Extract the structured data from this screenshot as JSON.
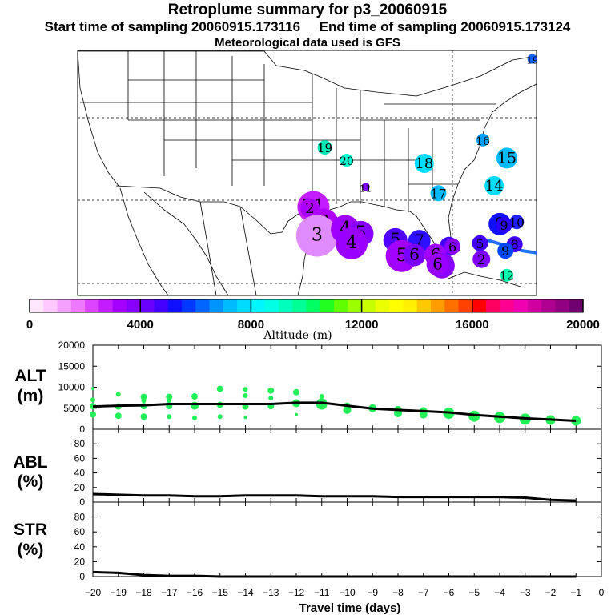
{
  "header": {
    "title": "Retroplume summary for p3_20060915",
    "start_label": "Start time of sampling 20060915.173116",
    "end_label": "End time of sampling 20060915.173124",
    "met_label": "Meteorological data used is GFS"
  },
  "colorbar": {
    "min": 0,
    "max": 20000,
    "tick_labels": [
      "0",
      "4000",
      "8000",
      "12000",
      "16000",
      "20000"
    ],
    "tick_values": [
      0,
      4000,
      8000,
      12000,
      16000,
      20000
    ],
    "axis_label": "Altitude (m)",
    "colors": [
      "#ffe6ff",
      "#ffc8ff",
      "#f5a0ff",
      "#ee78ff",
      "#dd44ff",
      "#c21cff",
      "#a400ff",
      "#8800ff",
      "#6a00ff",
      "#4400ff",
      "#1010ff",
      "#0038ff",
      "#0066ff",
      "#0094ff",
      "#00bcff",
      "#00dcff",
      "#00f6ff",
      "#00ffe4",
      "#00ffbc",
      "#00ff94",
      "#00ff60",
      "#20ff20",
      "#60ff00",
      "#9cff00",
      "#c8ff00",
      "#ecff00",
      "#ffff00",
      "#fff000",
      "#ffc800",
      "#ff9c00",
      "#ff7000",
      "#ff4000",
      "#ff0000",
      "#ff0060",
      "#ff0090",
      "#f000b0",
      "#d000a0",
      "#b00090",
      "#900080",
      "#700070"
    ]
  },
  "map": {
    "labels": [
      {
        "text": "19",
        "lon": -60.6,
        "lat": 52.2,
        "color": "#1060ff",
        "size": 6
      },
      {
        "text": "16",
        "lon": -67.6,
        "lat": 44.6,
        "color": "#00a0ff",
        "size": 8
      },
      {
        "text": "19",
        "lon": -90.0,
        "lat": 43.9,
        "color": "#00e8b8",
        "size": 9
      },
      {
        "text": "15",
        "lon": -64.2,
        "lat": 42.9,
        "color": "#00bcff",
        "size": 13
      },
      {
        "text": "20",
        "lon": -86.9,
        "lat": 42.7,
        "color": "#00ffd0",
        "size": 8
      },
      {
        "text": "18",
        "lon": -75.9,
        "lat": 42.4,
        "color": "#00dcff",
        "size": 12
      },
      {
        "text": "14",
        "lon": -66.0,
        "lat": 40.3,
        "color": "#00dcff",
        "size": 12
      },
      {
        "text": "11",
        "lon": -84.2,
        "lat": 40.2,
        "color": "#7a00ff",
        "size": 5
      },
      {
        "text": "17",
        "lon": -73.9,
        "lat": 39.6,
        "color": "#00bcff",
        "size": 10
      },
      {
        "text": "21",
        "lon": -91.6,
        "lat": 38.3,
        "color": "#c21cff",
        "size": 20
      },
      {
        "text": "2",
        "lon": -92.1,
        "lat": 38.2,
        "color": "#aa00ff",
        "size": 12
      },
      {
        "text": "8",
        "lon": -65.2,
        "lat": 36.7,
        "color": "#1010ff",
        "size": 14
      },
      {
        "text": "10",
        "lon": -62.8,
        "lat": 36.9,
        "color": "#2020ff",
        "size": 9
      },
      {
        "text": "9",
        "lon": -64.6,
        "lat": 36.6,
        "color": "#2a00ff",
        "size": 10
      },
      {
        "text": "3",
        "lon": -90.1,
        "lat": 36.8,
        "color": "#b200ff",
        "size": 18
      },
      {
        "text": "3",
        "lon": -91.1,
        "lat": 35.6,
        "color": "#e08cff",
        "size": 26
      },
      {
        "text": "4",
        "lon": -87.1,
        "lat": 36.2,
        "color": "#a000ff",
        "size": 18
      },
      {
        "text": "5",
        "lon": -84.9,
        "lat": 35.8,
        "color": "#8800ff",
        "size": 16
      },
      {
        "text": "5",
        "lon": -80.0,
        "lat": 35.2,
        "color": "#5000ff",
        "size": 15
      },
      {
        "text": "7",
        "lon": -76.6,
        "lat": 35.1,
        "color": "#2c10ff",
        "size": 14
      },
      {
        "text": "4",
        "lon": -86.2,
        "lat": 34.9,
        "color": "#9a00ff",
        "size": 20
      },
      {
        "text": "6",
        "lon": -72.4,
        "lat": 34.6,
        "color": "#4400ff",
        "size": 12
      },
      {
        "text": "5",
        "lon": -68.0,
        "lat": 34.9,
        "color": "#4400ff",
        "size": 10
      },
      {
        "text": "8",
        "lon": -63.1,
        "lat": 34.8,
        "color": "#4400ff",
        "size": 10
      },
      {
        "text": "6",
        "lon": -71.9,
        "lat": 34.6,
        "color": "#8a00ff",
        "size": 10
      },
      {
        "text": "9",
        "lon": -64.4,
        "lat": 34.2,
        "color": "#0048ff",
        "size": 10
      },
      {
        "text": "5",
        "lon": -79.1,
        "lat": 33.7,
        "color": "#a200ff",
        "size": 20
      },
      {
        "text": "6",
        "lon": -77.3,
        "lat": 33.8,
        "color": "#7a00ff",
        "size": 14
      },
      {
        "text": "6",
        "lon": -74.3,
        "lat": 33.8,
        "color": "#a000ff",
        "size": 14
      },
      {
        "text": "2",
        "lon": -67.8,
        "lat": 33.4,
        "color": "#8000ff",
        "size": 11
      },
      {
        "text": "7",
        "lon": -73.4,
        "lat": 32.8,
        "color": "#8a00ff",
        "size": 16
      },
      {
        "text": "6",
        "lon": -74.0,
        "lat": 32.9,
        "color": "#9a00ff",
        "size": 14
      },
      {
        "text": "12",
        "lon": -64.2,
        "lat": 31.9,
        "color": "#00ffb0",
        "size": 8
      }
    ],
    "path_color": "#1e70ff"
  },
  "panels": {
    "alt": {
      "label_line1": "ALT",
      "label_line2": "(m)",
      "ylim": [
        0,
        20000
      ],
      "y_ticks": [
        "20000",
        "15000",
        "10000",
        "5000",
        "0"
      ]
    },
    "abl": {
      "label_line1": "ABL",
      "label_line2": "(%)",
      "ylim": [
        0,
        100
      ],
      "y_ticks": [
        "80",
        "60",
        "40",
        "20",
        "0"
      ]
    },
    "str": {
      "label_line1": "STR",
      "label_line2": "(%)",
      "ylim": [
        0,
        100
      ],
      "y_ticks": [
        "80",
        "60",
        "40",
        "20",
        "0"
      ]
    },
    "x_tick_labels": [
      "−20",
      "−19",
      "−18",
      "−17",
      "−16",
      "−15",
      "−14",
      "−13",
      "−12",
      "−11",
      "−10",
      "−9",
      "−8",
      "−7",
      "−6",
      "−5",
      "−4",
      "−3",
      "−2",
      "−1",
      "0"
    ],
    "xlabel": "Travel time (days)"
  },
  "chart_data": {
    "type": "line",
    "title": "Retroplume summary for p3_20060915",
    "xlabel": "Travel time (days)",
    "xlim": [
      -20,
      0
    ],
    "x": [
      -20,
      -19,
      -18,
      -17,
      -16,
      -15,
      -14,
      -13,
      -12,
      -11,
      -10,
      -9,
      -8,
      -7,
      -6,
      -5,
      -4,
      -3,
      -2,
      -1
    ],
    "series": [
      {
        "name": "ALT mean (m)",
        "values": [
          5400,
          5600,
          5700,
          6000,
          6000,
          6000,
          6000,
          6000,
          6300,
          6300,
          5600,
          4900,
          4600,
          4300,
          4000,
          3400,
          3000,
          2600,
          2300,
          2000
        ]
      },
      {
        "name": "ABL (%)",
        "values": [
          11,
          10,
          9,
          9,
          8,
          8,
          9,
          9,
          9,
          8,
          8,
          8,
          7,
          7,
          7,
          7,
          7,
          6,
          3,
          2
        ]
      },
      {
        "name": "STR (%)",
        "values": [
          6,
          5,
          2,
          1,
          1,
          0,
          0,
          0,
          0,
          0,
          0,
          0,
          0,
          0,
          0,
          0,
          0,
          0,
          0,
          0
        ]
      }
    ],
    "alt_points": [
      {
        "x": -20,
        "y": 9700,
        "s": 2
      },
      {
        "x": -20,
        "y": 7000,
        "s": 3
      },
      {
        "x": -20,
        "y": 5500,
        "s": 4
      },
      {
        "x": -20,
        "y": 3500,
        "s": 4
      },
      {
        "x": -19,
        "y": 8300,
        "s": 3
      },
      {
        "x": -19,
        "y": 5400,
        "s": 4
      },
      {
        "x": -19,
        "y": 3200,
        "s": 4
      },
      {
        "x": -18,
        "y": 7700,
        "s": 4
      },
      {
        "x": -18,
        "y": 6800,
        "s": 3
      },
      {
        "x": -18,
        "y": 5500,
        "s": 4
      },
      {
        "x": -18,
        "y": 3000,
        "s": 4
      },
      {
        "x": -17,
        "y": 7700,
        "s": 4
      },
      {
        "x": -17,
        "y": 6800,
        "s": 3
      },
      {
        "x": -17,
        "y": 5500,
        "s": 4
      },
      {
        "x": -17,
        "y": 3000,
        "s": 3
      },
      {
        "x": -16,
        "y": 7800,
        "s": 4
      },
      {
        "x": -16,
        "y": 5600,
        "s": 5
      },
      {
        "x": -16,
        "y": 2700,
        "s": 3
      },
      {
        "x": -15,
        "y": 9600,
        "s": 4
      },
      {
        "x": -15,
        "y": 5800,
        "s": 4
      },
      {
        "x": -15,
        "y": 3000,
        "s": 3
      },
      {
        "x": -14,
        "y": 9500,
        "s": 3
      },
      {
        "x": -14,
        "y": 8000,
        "s": 3
      },
      {
        "x": -14,
        "y": 5400,
        "s": 4
      },
      {
        "x": -14,
        "y": 2800,
        "s": 2
      },
      {
        "x": -13,
        "y": 9200,
        "s": 4
      },
      {
        "x": -13,
        "y": 7400,
        "s": 3
      },
      {
        "x": -13,
        "y": 5500,
        "s": 4
      },
      {
        "x": -12,
        "y": 8800,
        "s": 4
      },
      {
        "x": -12,
        "y": 6200,
        "s": 5
      },
      {
        "x": -12,
        "y": 3500,
        "s": 2
      },
      {
        "x": -11,
        "y": 7800,
        "s": 3
      },
      {
        "x": -11,
        "y": 6000,
        "s": 7
      },
      {
        "x": -10,
        "y": 5600,
        "s": 4
      },
      {
        "x": -10,
        "y": 4600,
        "s": 5
      },
      {
        "x": -9,
        "y": 5000,
        "s": 5
      },
      {
        "x": -8,
        "y": 4600,
        "s": 5
      },
      {
        "x": -8,
        "y": 3800,
        "s": 5
      },
      {
        "x": -7,
        "y": 4300,
        "s": 5
      },
      {
        "x": -7,
        "y": 3500,
        "s": 5
      },
      {
        "x": -6,
        "y": 3800,
        "s": 7
      },
      {
        "x": -5,
        "y": 3100,
        "s": 7
      },
      {
        "x": -4,
        "y": 2800,
        "s": 7
      },
      {
        "x": -3,
        "y": 2400,
        "s": 7
      },
      {
        "x": -2,
        "y": 2200,
        "s": 6
      },
      {
        "x": -1,
        "y": 2000,
        "s": 6
      }
    ]
  }
}
